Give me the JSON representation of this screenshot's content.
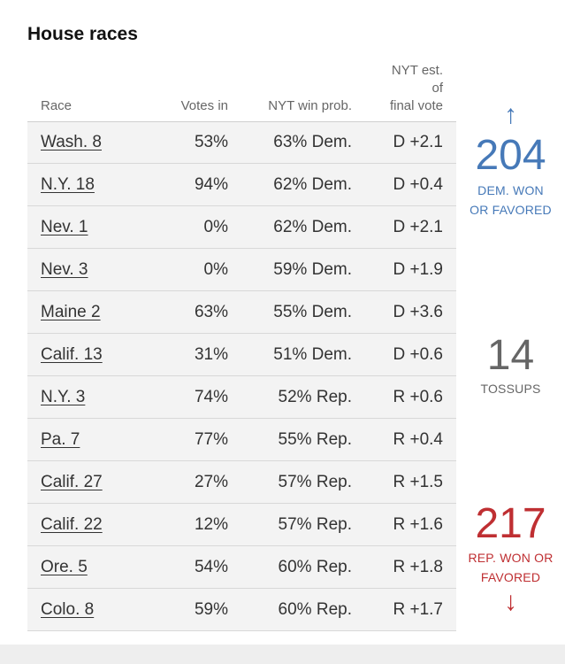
{
  "title": "House races",
  "columns": {
    "race": "Race",
    "votes_in": "Votes in",
    "win_prob": "NYT win prob.",
    "est_line1": "NYT est. of",
    "est_line2": "final vote"
  },
  "rows": [
    {
      "race": "Wash. 8",
      "votes_in": "53%",
      "win_prob": "63% Dem.",
      "est": "D +2.1"
    },
    {
      "race": "N.Y. 18",
      "votes_in": "94%",
      "win_prob": "62% Dem.",
      "est": "D +0.4"
    },
    {
      "race": "Nev. 1",
      "votes_in": "0%",
      "win_prob": "62% Dem.",
      "est": "D +2.1"
    },
    {
      "race": "Nev. 3",
      "votes_in": "0%",
      "win_prob": "59% Dem.",
      "est": "D +1.9"
    },
    {
      "race": "Maine 2",
      "votes_in": "63%",
      "win_prob": "55% Dem.",
      "est": "D +3.6"
    },
    {
      "race": "Calif. 13",
      "votes_in": "31%",
      "win_prob": "51% Dem.",
      "est": "D +0.6"
    },
    {
      "race": "N.Y. 3",
      "votes_in": "74%",
      "win_prob": "52% Rep.",
      "est": "R +0.6"
    },
    {
      "race": "Pa. 7",
      "votes_in": "77%",
      "win_prob": "55% Rep.",
      "est": "R +0.4"
    },
    {
      "race": "Calif. 27",
      "votes_in": "27%",
      "win_prob": "57% Rep.",
      "est": "R +1.5"
    },
    {
      "race": "Calif. 22",
      "votes_in": "12%",
      "win_prob": "57% Rep.",
      "est": "R +1.6"
    },
    {
      "race": "Ore. 5",
      "votes_in": "54%",
      "win_prob": "60% Rep.",
      "est": "R +1.8"
    },
    {
      "race": "Colo. 8",
      "votes_in": "59%",
      "win_prob": "60% Rep.",
      "est": "R +1.7"
    }
  ],
  "summary": {
    "dem": {
      "count": "204",
      "label_line1": "DEM. WON",
      "label_line2": "OR FAVORED",
      "arrow": "↑",
      "color": "#4679b8"
    },
    "tossups": {
      "count": "14",
      "label": "TOSSUPS",
      "color": "#666666"
    },
    "rep": {
      "count": "217",
      "label_line1": "REP. WON OR",
      "label_line2": "FAVORED",
      "arrow": "↓",
      "color": "#bf2f32"
    }
  }
}
